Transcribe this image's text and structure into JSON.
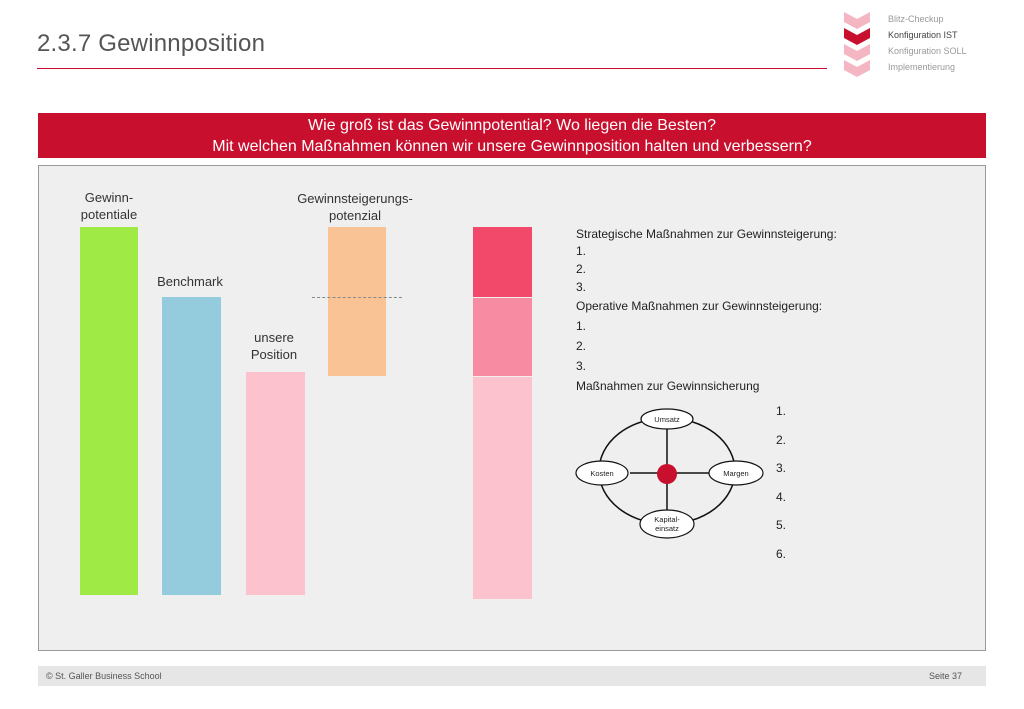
{
  "page": {
    "title": "2.3.7 Gewinnposition"
  },
  "nav": {
    "items": [
      {
        "label": "Blitz-Checkup",
        "active": false
      },
      {
        "label": "Konfiguration IST",
        "active": true
      },
      {
        "label": "Konfiguration SOLL",
        "active": false
      },
      {
        "label": "Implementierung",
        "active": false
      }
    ],
    "colors": {
      "active": "#c8102e",
      "inactive": "#f4b6c2"
    }
  },
  "banner": {
    "line1": "Wie groß ist das Gewinnpotential? Wo liegen die Besten?",
    "line2": "Mit welchen Maßnahmen können wir unsere Gewinnposition halten und verbessern?"
  },
  "chart": {
    "labels": {
      "gewinn_1": "Gewinn-",
      "gewinn_2": "potentiale",
      "benchmark": "Benchmark",
      "position_1": "unsere",
      "position_2": "Position",
      "steigerung_1": "Gewinnsteigerungs-",
      "steigerung_2": "potenzial"
    },
    "colors": {
      "gewinn": "#9fea45",
      "benchmark": "#94ccdd",
      "position": "#fcc3cf",
      "steigerung": "#f9c396",
      "stack_top": "#f2486a",
      "stack_mid": "#f78ba2",
      "stack_bottom": "#fcc3cf"
    }
  },
  "measures": {
    "strategic_heading": "Strategische Maßnahmen zur Gewinnsteigerung:",
    "strategic_items": [
      "1.",
      "2.",
      "3."
    ],
    "operative_heading": "Operative Maßnahmen zur Gewinnsteigerung:",
    "operative_items": [
      "1.",
      "2.",
      "3."
    ],
    "securing_heading": "Maßnahmen zur Gewinnsicherung",
    "securing_items": [
      "1.",
      "2.",
      "3.",
      "4.",
      "5.",
      "6."
    ]
  },
  "diagram": {
    "top": "Umsatz",
    "left": "Kosten",
    "right": "Margen",
    "bottom_1": "Kapital-",
    "bottom_2": "einsatz",
    "center_color": "#c8102e"
  },
  "footer": {
    "left": "© St. Galler Business School",
    "right": "Seite 37"
  }
}
